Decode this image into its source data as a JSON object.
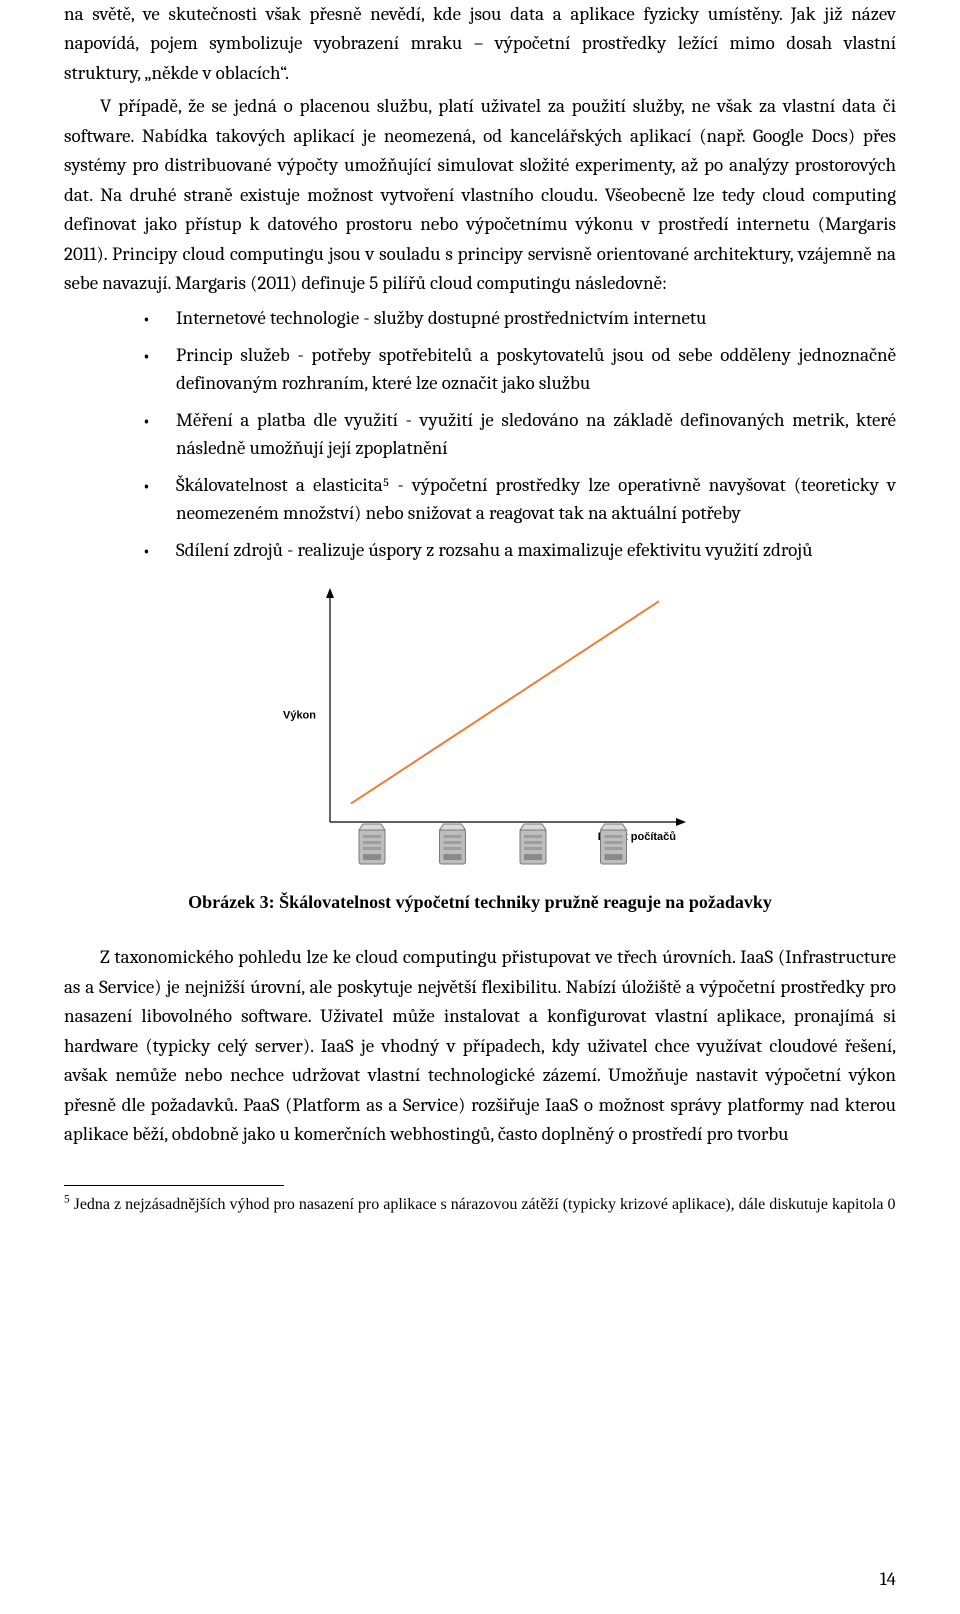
{
  "paragraph1": "na světě, ve skutečnosti však přesně nevědí, kde jsou data a aplikace fyzicky umístěny. Jak již název napovídá, pojem symbolizuje vyobrazení mraku – výpočetní prostředky ležící mimo dosah vlastní struktury, „někde v oblacích“.",
  "paragraph2": "V případě, že se jedná o placenou službu, platí uživatel za použití služby, ne však za vlastní data či software. Nabídka takových aplikací je neomezená, od kancelářských aplikací (např. Google Docs) přes systémy pro distribuované výpočty umožňující simulovat složité experimenty, až po analýzy prostorových dat. Na druhé straně existuje možnost vytvoření vlastního cloudu. Všeobecně lze tedy cloud computing definovat jako přístup k datového prostoru nebo výpočetnímu výkonu v prostředí internetu (Margaris 2011). Principy cloud computingu jsou v souladu s principy servisně orientované architektury, vzájemně na sebe navazují. Margaris (2011) definuje 5 pilířů cloud computingu následovně:",
  "pillars": [
    "Internetové technologie - služby dostupné prostřednictvím internetu",
    "Princip služeb - potřeby spotřebitelů a poskytovatelů jsou od sebe odděleny jednoznačně definovaným rozhraním, které lze označit jako službu",
    "Měření a platba dle využití - využití je sledováno na základě definovaných metrik, které následně umožňují její zpoplatnění",
    "Škálovatelnost a elasticita⁵ - výpočetní prostředky lze operativně navyšovat (teoreticky v neomezeném množství) nebo snižovat a reagovat tak na aktuální potřeby",
    "Sdílení zdrojů - realizuje úspory z rozsahu a maximalizuje efektivitu využití zdrojů"
  ],
  "figure": {
    "type": "line",
    "caption": "Obrázek 3: Škálovatelnost výpočetní techniky pružně reaguje na požadavky",
    "xlabel": "Počet počítačů",
    "ylabel": "Výkon",
    "label_fontsize": 11,
    "axis_color": "#000000",
    "line_color": "#ed7d31",
    "line_width": 2,
    "server_fill": "#bdbdbd",
    "server_stroke": "#7a7a7a",
    "background_color": "#ffffff",
    "xlim": [
      0,
      100
    ],
    "ylim": [
      0,
      100
    ],
    "line_points": [
      [
        6,
        92
      ],
      [
        94,
        4
      ]
    ],
    "servers_x": [
      12,
      35,
      58,
      81
    ],
    "aspect_w": 440,
    "aspect_h": 300
  },
  "paragraph3": "Z taxonomického pohledu lze ke cloud computingu přistupovat ve třech úrovních. IaaS (Infrastructure as a Service) je nejnižší úrovní, ale poskytuje největší flexibilitu. Nabízí úložiště a výpočetní prostředky pro nasazení libovolného software. Uživatel může instalovat a konfigurovat vlastní aplikace, pronajímá si hardware (typicky celý server). IaaS je vhodný v případech, kdy uživatel chce využívat cloudové řešení, avšak nemůže nebo nechce udržovat vlastní technologické zázemí. Umožňuje nastavit výpočetní výkon přesně dle požadavků. PaaS (Platform as a Service) rozšiřuje IaaS o možnost správy platformy nad kterou aplikace běží, obdobně jako u komerčních webhostingů, často doplněný o prostředí pro tvorbu",
  "footnote": {
    "marker": "5",
    "text": "Jedna z nejzásadnějších výhod pro nasazení pro aplikace s nárazovou zátěží (typicky krizové aplikace), dále diskutuje kapitola 0"
  },
  "page_number": "14"
}
